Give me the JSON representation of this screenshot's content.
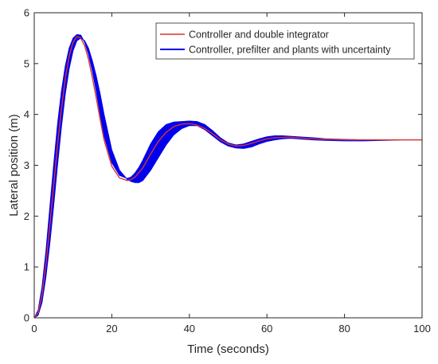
{
  "chart_data": {
    "type": "line",
    "title": "",
    "xlabel": "Time (seconds)",
    "ylabel": "Lateral position (m)",
    "xlim": [
      0,
      100
    ],
    "ylim": [
      0,
      6
    ],
    "xticks": [
      0,
      20,
      40,
      60,
      80,
      100
    ],
    "yticks": [
      0,
      1,
      2,
      3,
      4,
      5,
      6
    ],
    "grid": false,
    "legend_position": "top-right",
    "series": [
      {
        "name": "Controller and double integrator",
        "type": "line",
        "color": "#d9342b",
        "x": [
          0,
          1,
          2,
          3,
          4,
          5,
          6,
          7,
          8,
          9,
          10,
          11,
          12,
          13,
          14,
          15,
          16,
          17,
          18,
          20,
          22,
          24,
          25,
          26,
          28,
          30,
          32,
          34,
          36,
          38,
          40,
          42,
          44,
          46,
          48,
          50,
          52,
          54,
          56,
          58,
          60,
          62,
          64,
          66,
          68,
          70,
          72,
          75,
          80,
          85,
          90,
          95,
          100
        ],
        "y": [
          0,
          0.1,
          0.45,
          1.05,
          1.8,
          2.6,
          3.4,
          4.1,
          4.7,
          5.15,
          5.42,
          5.53,
          5.5,
          5.35,
          5.08,
          4.72,
          4.32,
          3.9,
          3.5,
          2.98,
          2.75,
          2.7,
          2.72,
          2.77,
          2.95,
          3.22,
          3.47,
          3.65,
          3.76,
          3.81,
          3.82,
          3.79,
          3.72,
          3.62,
          3.5,
          3.42,
          3.38,
          3.39,
          3.43,
          3.48,
          3.52,
          3.54,
          3.55,
          3.55,
          3.54,
          3.53,
          3.52,
          3.51,
          3.5,
          3.5,
          3.5,
          3.5,
          3.5
        ]
      },
      {
        "name": "Controller, prefilter and plants with uncertainty",
        "type": "band",
        "color": "#0000ee",
        "x": [
          0,
          1,
          2,
          3,
          4,
          5,
          6,
          7,
          8,
          9,
          10,
          11,
          12,
          13,
          14,
          15,
          16,
          17,
          18,
          20,
          22,
          24,
          25,
          26,
          27,
          28,
          30,
          32,
          34,
          36,
          38,
          40,
          42,
          44,
          46,
          48,
          50,
          52,
          54,
          56,
          58,
          60,
          62,
          64,
          66,
          68,
          70,
          72,
          75,
          80,
          85,
          90,
          95,
          100
        ],
        "y_low": [
          0,
          0.05,
          0.3,
          0.8,
          1.45,
          2.2,
          3.0,
          3.75,
          4.4,
          4.9,
          5.25,
          5.45,
          5.5,
          5.45,
          5.3,
          5.05,
          4.75,
          4.4,
          4.0,
          3.3,
          2.9,
          2.72,
          2.68,
          2.66,
          2.66,
          2.7,
          2.9,
          3.15,
          3.4,
          3.6,
          3.72,
          3.78,
          3.78,
          3.7,
          3.58,
          3.46,
          3.38,
          3.34,
          3.33,
          3.36,
          3.42,
          3.47,
          3.5,
          3.52,
          3.53,
          3.52,
          3.51,
          3.5,
          3.49,
          3.48,
          3.48,
          3.49,
          3.5,
          3.5
        ],
        "y_high": [
          0,
          0.15,
          0.6,
          1.3,
          2.15,
          3.0,
          3.8,
          4.45,
          4.95,
          5.3,
          5.5,
          5.57,
          5.56,
          5.42,
          5.18,
          4.85,
          4.45,
          4.0,
          3.58,
          3.05,
          2.8,
          2.74,
          2.77,
          2.85,
          2.96,
          3.1,
          3.42,
          3.66,
          3.8,
          3.85,
          3.86,
          3.87,
          3.86,
          3.8,
          3.68,
          3.54,
          3.44,
          3.4,
          3.42,
          3.47,
          3.52,
          3.56,
          3.58,
          3.58,
          3.57,
          3.56,
          3.55,
          3.54,
          3.52,
          3.51,
          3.5,
          3.5,
          3.5,
          3.5
        ]
      }
    ]
  }
}
